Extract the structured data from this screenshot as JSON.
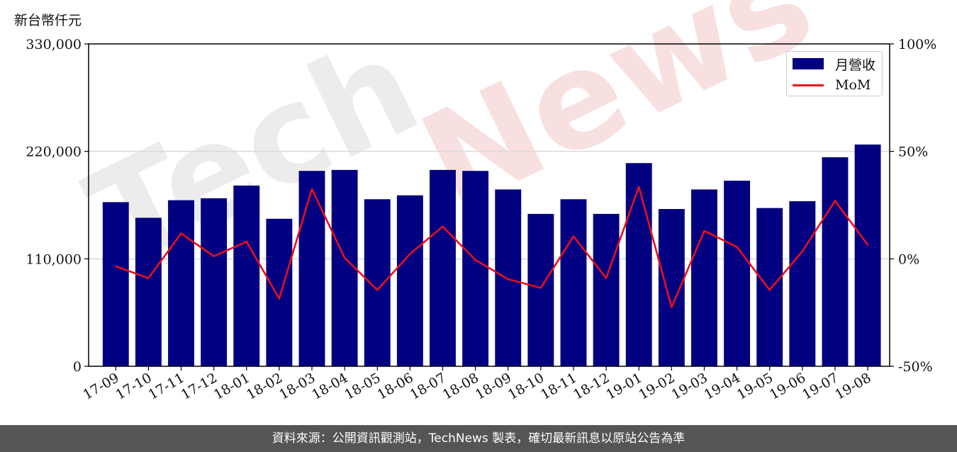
{
  "unit_label": "新台幣仟元",
  "footer": "資料來源：公開資訊觀測站，TechNews 製表，確切最新訊息以原站公告為準",
  "watermark": {
    "part1": "Tech",
    "part2": "News"
  },
  "colors": {
    "bar": "#000080",
    "line": "#e8101a",
    "grid": "#d9d9d9",
    "footer_bg": "#555555"
  },
  "legend": {
    "bar_label": "月營收",
    "line_label": "MoM",
    "placement": "top-right"
  },
  "chart_data": {
    "type": "bar",
    "categories": [
      "17-09",
      "17-10",
      "17-11",
      "17-12",
      "18-01",
      "18-02",
      "18-03",
      "18-04",
      "18-05",
      "18-06",
      "18-07",
      "18-08",
      "18-09",
      "18-10",
      "18-11",
      "18-12",
      "19-01",
      "19-02",
      "19-03",
      "19-04",
      "19-05",
      "19-06",
      "19-07",
      "19-08"
    ],
    "series": [
      {
        "name": "月營收",
        "type": "bar",
        "axis": "left",
        "values": [
          168000,
          152000,
          170000,
          172000,
          185000,
          151000,
          200000,
          201000,
          171000,
          175000,
          201000,
          200000,
          181000,
          156000,
          171000,
          156000,
          208000,
          161000,
          181000,
          190000,
          162000,
          169000,
          214000,
          227000
        ]
      },
      {
        "name": "MoM",
        "type": "line",
        "axis": "right",
        "unit": "%",
        "values": [
          -3.5,
          -9,
          11.8,
          1.2,
          8,
          -18.5,
          32.5,
          0.5,
          -14.5,
          2.3,
          15,
          -0.5,
          -9.5,
          -13.5,
          10.5,
          -9,
          33.5,
          -22.5,
          13,
          5.5,
          -14.5,
          3.5,
          27,
          6.5
        ]
      }
    ],
    "y_left": {
      "min": 0,
      "max": 330000,
      "ticks": [
        0,
        110000,
        220000,
        330000
      ],
      "tick_labels": [
        "0",
        "110,000",
        "220,000",
        "330,000"
      ]
    },
    "y_right": {
      "min": -50,
      "max": 100,
      "ticks": [
        -50,
        0,
        50,
        100
      ],
      "tick_labels": [
        "-50%",
        "0%",
        "50%",
        "100%"
      ]
    },
    "grid": "horizontal"
  }
}
